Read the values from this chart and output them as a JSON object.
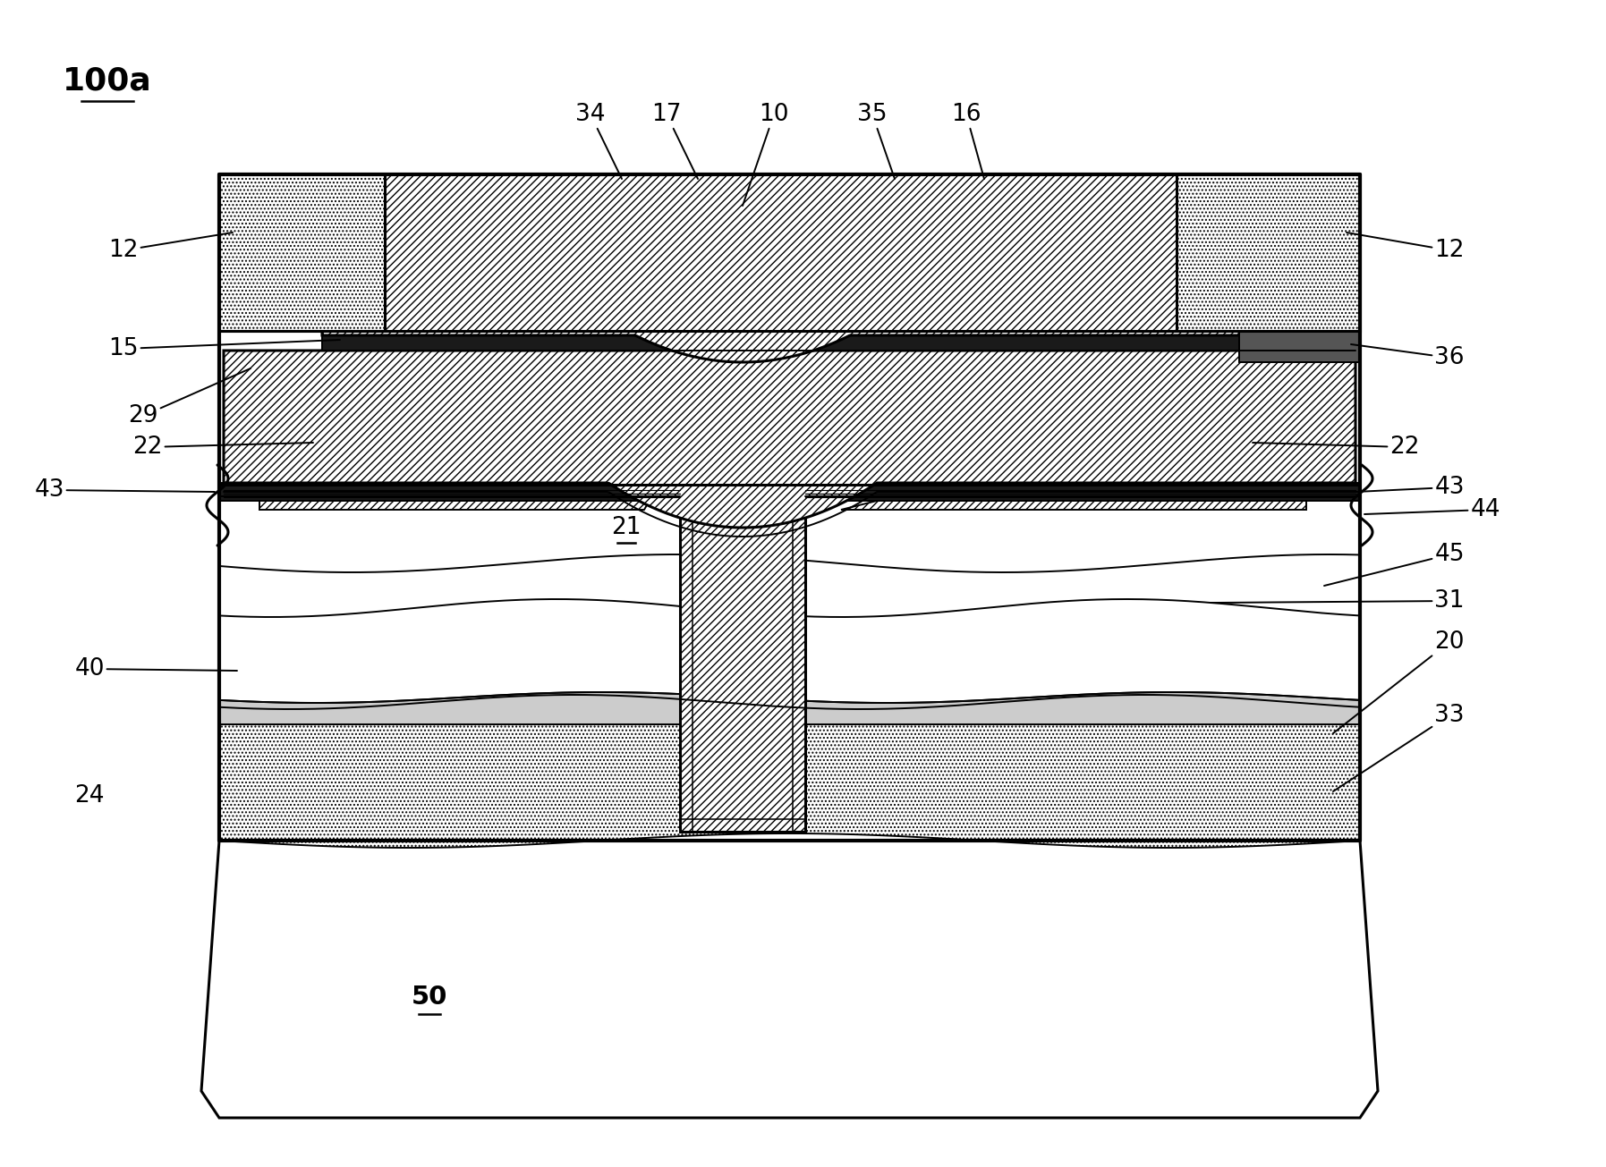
{
  "bg": "#ffffff",
  "black": "#000000",
  "lw_main": 2.2,
  "lw_thin": 1.4,
  "lw_thick": 3.0,
  "labels": {
    "title": "100a",
    "34": "34",
    "17": "17",
    "10": "10",
    "35": "35",
    "16": "16",
    "12L": "12",
    "12R": "12",
    "15": "15",
    "36": "36",
    "29": "29",
    "43R": "43",
    "43L": "43",
    "44": "44",
    "22L": "22",
    "22R": "22",
    "45": "45",
    "21": "21",
    "31": "31",
    "40": "40",
    "20": "20",
    "33": "33",
    "24": "24",
    "50": "50"
  },
  "fs": 19,
  "fs_title": 26
}
